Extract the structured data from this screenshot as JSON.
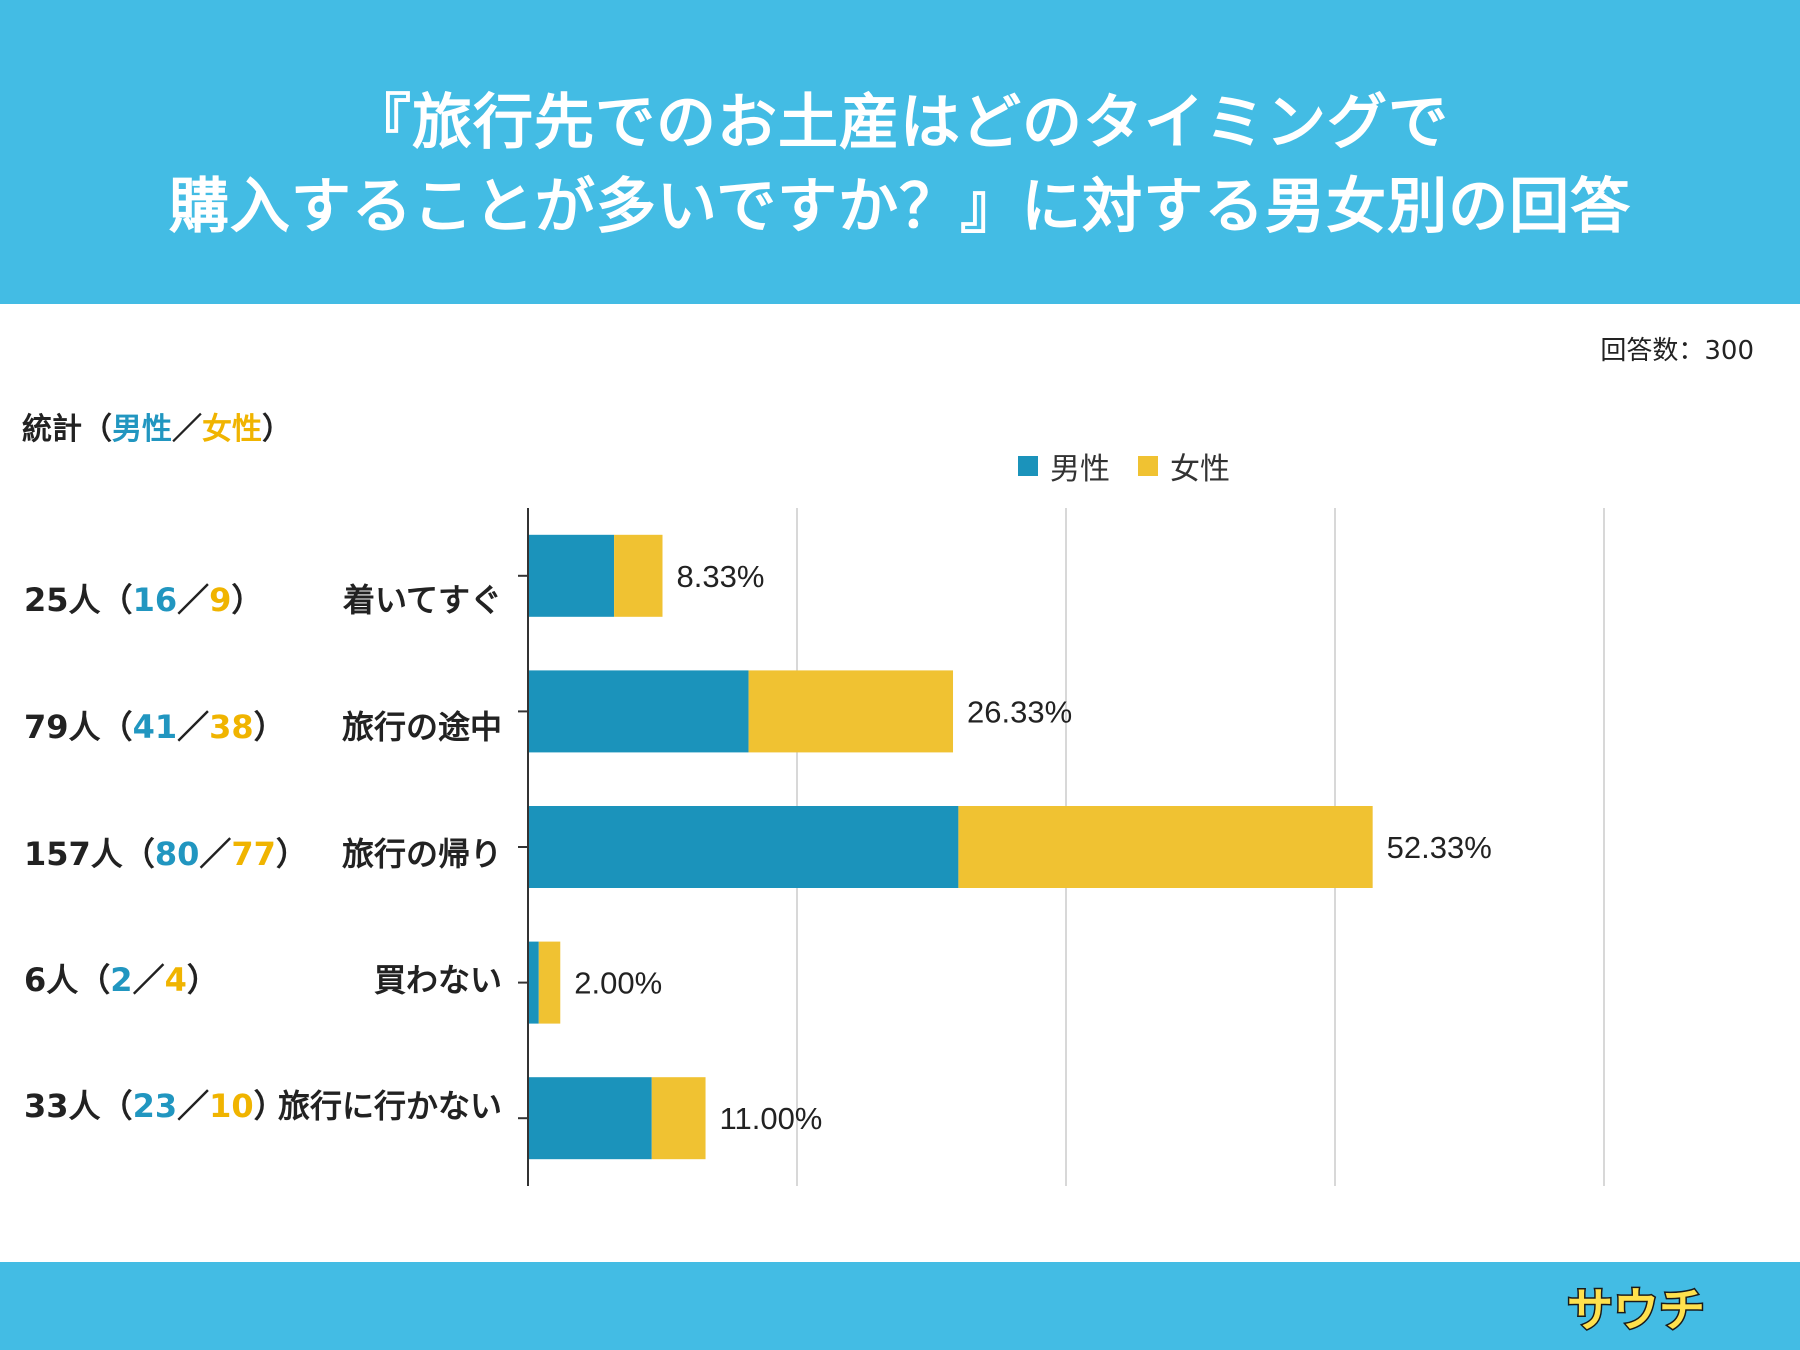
{
  "header": {
    "title_line1": "『旅行先でのお土産はどのタイミングで",
    "title_line2": "購入することが多いですか？』に対する男女別の回答"
  },
  "respondents": "回答数：300",
  "stats_header": {
    "prefix": "統計（",
    "male": "男性",
    "sep": "／",
    "female": "女性",
    "suffix": "）"
  },
  "legend": {
    "male": "男性",
    "female": "女性"
  },
  "colors": {
    "header": "#43bce4",
    "male": "#1b93bb",
    "female": "#f0c232",
    "male_text": "#2196c0",
    "female_text": "#f0b400"
  },
  "rows": [
    {
      "total": "25人",
      "male": "16",
      "female": "9"
    },
    {
      "total": "79人",
      "male": "41",
      "female": "38"
    },
    {
      "total": "157人",
      "male": "80",
      "female": "77"
    },
    {
      "total": "6人",
      "male": "2",
      "female": "4"
    },
    {
      "total": "33人",
      "male": "23",
      "female": "10"
    }
  ],
  "chart_data": {
    "type": "bar",
    "orientation": "horizontal",
    "stacked": true,
    "title": "『旅行先でのお土産はどのタイミングで購入することが多いですか？』に対する男女別の回答",
    "categories": [
      "着いてすぐ",
      "旅行の途中",
      "旅行の帰り",
      "買わない",
      "旅行に行かない"
    ],
    "series": [
      {
        "name": "男性",
        "values": [
          16,
          41,
          80,
          2,
          23
        ]
      },
      {
        "name": "女性",
        "values": [
          9,
          38,
          77,
          4,
          10
        ]
      }
    ],
    "labels": [
      "8.33%",
      "26.33%",
      "52.33%",
      "2.00%",
      "11.00%"
    ],
    "xlim": [
      0,
      200
    ],
    "grid": true,
    "legend": "top"
  },
  "logo_text": "サウチ"
}
